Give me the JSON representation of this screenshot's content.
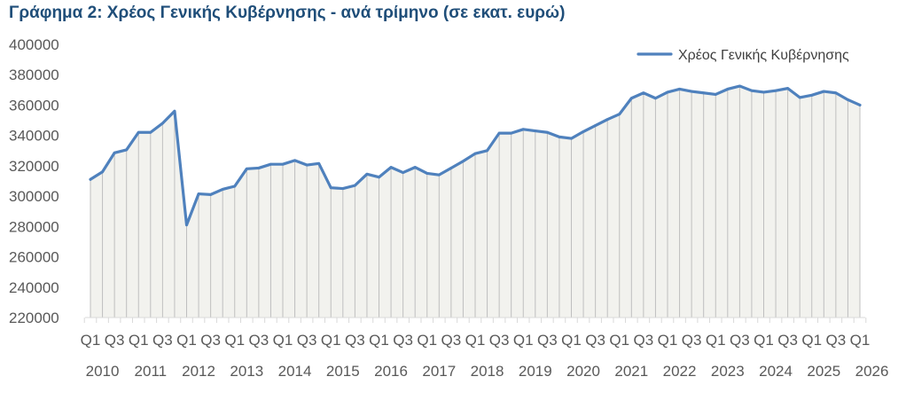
{
  "chart_data": {
    "type": "area",
    "title": "Γράφημα 2: Χρέος Γενικής Κυβέρνησης - ανά τρίμηνο (σε εκατ. ευρώ)",
    "series": [
      {
        "name": "Χρέος Γενικής Κυβέρνησης",
        "values": [
          311000,
          316000,
          328500,
          330500,
          342000,
          342000,
          348000,
          356000,
          281000,
          301500,
          301000,
          304500,
          306500,
          318000,
          318500,
          321000,
          321000,
          323500,
          320500,
          321500,
          305500,
          305000,
          307000,
          314500,
          312500,
          319000,
          315500,
          319000,
          315000,
          314000,
          318500,
          323000,
          328000,
          330000,
          341500,
          341500,
          344000,
          343000,
          342000,
          339000,
          338000,
          342500,
          346500,
          350500,
          354000,
          364500,
          368000,
          364500,
          368500,
          370500,
          369000,
          368000,
          367000,
          370500,
          372500,
          369500,
          368500,
          369500,
          371000,
          365000,
          366500,
          369000,
          368000,
          363500,
          360000
        ]
      }
    ],
    "x_tick_labels": [
      "Q1",
      "Q3",
      "Q1",
      "Q3",
      "Q1",
      "Q3",
      "Q1",
      "Q3",
      "Q1",
      "Q3",
      "Q1",
      "Q3",
      "Q1",
      "Q3",
      "Q1",
      "Q3",
      "Q1",
      "Q3",
      "Q1",
      "Q3",
      "Q1",
      "Q3",
      "Q1",
      "Q3",
      "Q1",
      "Q3",
      "Q1",
      "Q3",
      "Q1",
      "Q3",
      "Q1",
      "Q3",
      "Q1"
    ],
    "years": [
      "2010",
      "2011",
      "2012",
      "2013",
      "2014",
      "2015",
      "2016",
      "2017",
      "2018",
      "2019",
      "2020",
      "2021",
      "2022",
      "2023",
      "2024",
      "2025",
      "2026"
    ],
    "ylim": [
      220000,
      400000
    ],
    "y_ticks": [
      "220000",
      "240000",
      "260000",
      "280000",
      "300000",
      "320000",
      "340000",
      "360000",
      "380000",
      "400000"
    ],
    "legend_position": "top-right",
    "colors": {
      "line": "#4f81bd",
      "fill": "#f2f2ee",
      "drop_lines": "#bfbfbf",
      "axis": "#d9d9d9"
    }
  }
}
